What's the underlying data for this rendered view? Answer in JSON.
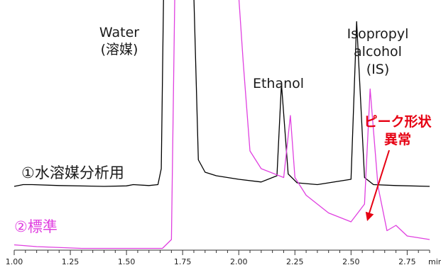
{
  "colors": {
    "series_1": "#000000",
    "series_2": "#e040e0",
    "annotation": "#e60012",
    "axis": "#333333"
  },
  "labels": {
    "water": "Water",
    "solvent": "(溶媒)",
    "ethanol": "Ethanol",
    "ipa_line1": "Isopropyl",
    "ipa_line2": "alcohol",
    "ipa_line3": "(IS)",
    "trace1": "①水溶媒分析用",
    "trace2": "②標準",
    "abnormal_line1": "ピーク形状",
    "abnormal_line2": "異常"
  },
  "chart_data": {
    "type": "line",
    "xlabel": "min",
    "ylabel": "",
    "xlim": [
      1.0,
      2.85
    ],
    "x_ticks": [
      1.0,
      1.25,
      1.5,
      1.75,
      2.0,
      2.25,
      2.5,
      2.75
    ],
    "x_tick_labels": [
      "1.00",
      "1.25",
      "1.50",
      "1.75",
      "2.00",
      "2.25",
      "2.50",
      "2.75"
    ],
    "y_axis_shown": false,
    "grid": false,
    "legend": "none (traces labeled inline)",
    "series": [
      {
        "name": "①水溶媒分析用",
        "color": "#000000",
        "baseline": 0.0,
        "x": [
          1.0,
          1.04,
          1.08,
          1.2,
          1.4,
          1.5,
          1.53,
          1.6,
          1.64,
          1.655,
          1.665,
          1.675,
          1.68,
          1.8,
          1.82,
          1.85,
          1.9,
          2.0,
          2.1,
          2.17,
          2.19,
          2.22,
          2.26,
          2.35,
          2.5,
          2.525,
          2.56,
          2.6,
          2.7,
          2.85
        ],
        "y": [
          0.0,
          0.01,
          0.01,
          0.005,
          0.0,
          0.003,
          0.01,
          0.005,
          0.01,
          0.1,
          1.5,
          3.0,
          3.0,
          3.0,
          0.15,
          0.08,
          0.06,
          0.04,
          0.025,
          0.06,
          0.58,
          0.07,
          0.02,
          0.01,
          0.04,
          0.93,
          0.05,
          0.01,
          0.005,
          0.0
        ]
      },
      {
        "name": "②標準",
        "color": "#e040e0",
        "baseline": -0.35,
        "x": [
          1.0,
          1.1,
          1.3,
          1.5,
          1.66,
          1.7,
          1.715,
          1.725,
          1.735,
          1.8,
          1.9,
          2.0,
          2.02,
          2.05,
          2.1,
          2.2,
          2.23,
          2.25,
          2.3,
          2.4,
          2.5,
          2.56,
          2.585,
          2.62,
          2.66,
          2.7,
          2.75,
          2.85
        ],
        "y": [
          -0.33,
          -0.34,
          -0.35,
          -0.35,
          -0.35,
          -0.3,
          1.5,
          3.0,
          3.0,
          3.0,
          3.0,
          3.0,
          0.7,
          0.2,
          0.1,
          0.05,
          0.4,
          0.05,
          -0.05,
          -0.15,
          -0.2,
          -0.1,
          0.55,
          0.0,
          -0.25,
          -0.22,
          -0.28,
          -0.3
        ]
      }
    ],
    "annotations": [
      "Water",
      "(溶媒)",
      "Ethanol",
      "Isopropyl",
      "alcohol",
      "(IS)",
      "①水溶媒分析用",
      "②標準",
      "ピーク形状",
      "異常"
    ]
  }
}
